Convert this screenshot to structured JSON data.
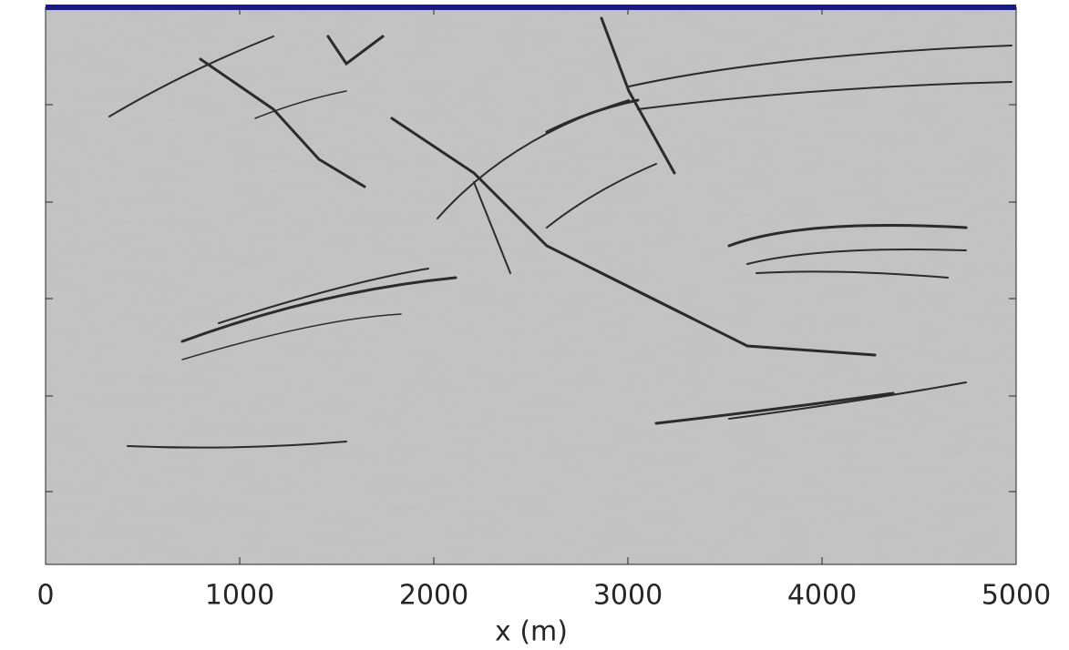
{
  "chart_data": {
    "type": "image",
    "xlabel": "x (m)",
    "xlim": [
      0,
      5000
    ],
    "xticks": [
      0,
      1000,
      2000,
      3000,
      4000,
      5000
    ]
  }
}
